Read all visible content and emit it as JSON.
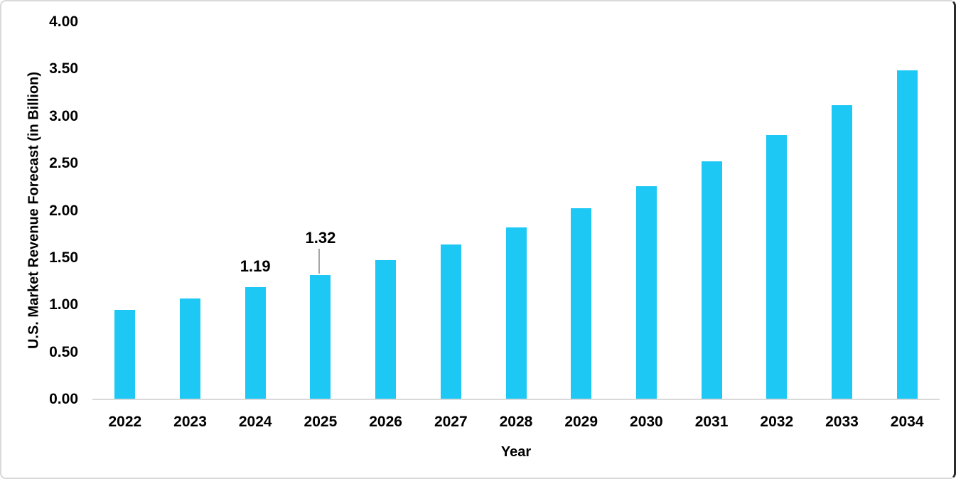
{
  "chart_data": {
    "type": "bar",
    "title": "",
    "xlabel": "Year",
    "ylabel": "U.S. Market Revenue Forecast (in Billion)",
    "categories": [
      "2022",
      "2023",
      "2024",
      "2025",
      "2026",
      "2027",
      "2028",
      "2029",
      "2030",
      "2031",
      "2032",
      "2033",
      "2034"
    ],
    "values": [
      0.95,
      1.07,
      1.19,
      1.32,
      1.48,
      1.64,
      1.82,
      2.03,
      2.26,
      2.52,
      2.8,
      3.12,
      3.49
    ],
    "ylim": [
      0,
      4
    ],
    "ytick_step": 0.5,
    "ytick_labels": [
      "0.00",
      "0.50",
      "1.00",
      "1.50",
      "2.00",
      "2.50",
      "3.00",
      "3.50",
      "4.00"
    ],
    "grid": false,
    "legend": false,
    "bar_color": "#1ec8f5",
    "axis_line_color": "#d9d9d9",
    "text_color": "#000000",
    "data_labels": [
      {
        "category": "2024",
        "text": "1.19",
        "leader_line": false
      },
      {
        "category": "2025",
        "text": "1.32",
        "leader_line": true,
        "leader_line_color": "#a6a6a6"
      }
    ]
  }
}
